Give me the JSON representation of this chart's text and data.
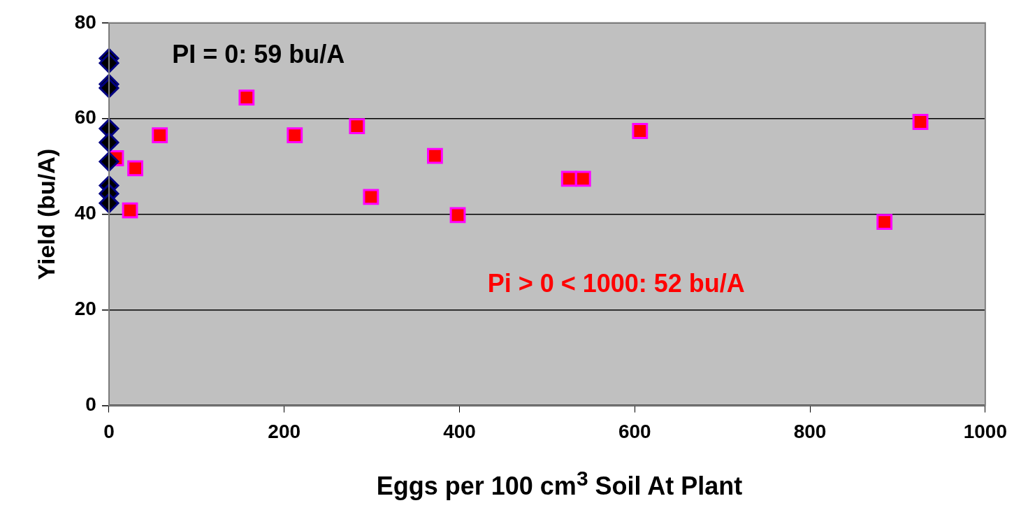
{
  "chart_data": {
    "type": "scatter",
    "xlabel": "Eggs per 100 cm$^{3}$ Soil At Plant",
    "ylabel": "Yield (bu/A)",
    "series": [
      {
        "color": "#000000",
        "marker": "diamond",
        "x": [
          0,
          0,
          0,
          0,
          0,
          0,
          0,
          0,
          0,
          0
        ],
        "values": [
          72.6,
          71.6,
          67.2,
          66.4,
          57.9,
          55,
          51,
          46,
          44.3,
          42.3
        ]
      },
      {
        "color": "#ff0000",
        "marker": "square",
        "x": [
          8,
          24,
          30,
          58,
          157,
          212,
          283,
          299,
          372,
          398,
          525,
          541,
          606,
          885,
          926
        ],
        "values": [
          51.7,
          40.8,
          49.6,
          56.5,
          64.4,
          56.5,
          58.4,
          43.6,
          52.2,
          39.8,
          47.4,
          47.4,
          57.4,
          38.4,
          59.3
        ]
      }
    ],
    "xlim": [
      0,
      1000
    ],
    "xticks": [
      0,
      200,
      400,
      600,
      800,
      1000
    ],
    "ylim": [
      0,
      80
    ],
    "yticks": [
      0,
      20,
      40,
      60,
      80
    ],
    "grid": "y",
    "legend": false,
    "annotations": [
      "PI = 0: 59 bu/A",
      "Pi > 0 < 1000: 52 bu/A"
    ]
  }
}
